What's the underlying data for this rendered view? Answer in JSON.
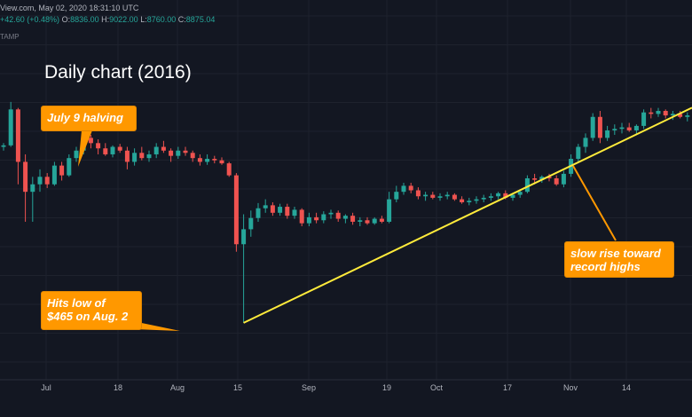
{
  "header": {
    "line1_text": "View.com, May 02, 2020 18:31:10 UTC",
    "change": "+42.60 (+0.48%)",
    "o_label": "O:",
    "o_value": "8836.00",
    "h_label": "H:",
    "h_value": "9022.00",
    "l_label": "L:",
    "l_value": "8760.00",
    "c_label": "C:",
    "c_value": "8875.04",
    "exchange": "TAMP"
  },
  "chart_data": {
    "type": "candlestick",
    "title": "Daily chart (2016)",
    "xlabel": "",
    "ylabel": "",
    "x_ticks": [
      "Jul",
      "18",
      "Aug",
      "15",
      "Sep",
      "19",
      "Oct",
      "17",
      "Nov",
      "14"
    ],
    "ylim": [
      440,
      780
    ],
    "grid": true,
    "up_color": "#26a69a",
    "down_color": "#ef5350",
    "series": [
      {
        "values": [
          [
            700,
            705,
            695,
            702
          ],
          [
            702,
            760,
            700,
            750
          ],
          [
            750,
            752,
            650,
            680
          ],
          [
            680,
            690,
            600,
            640
          ],
          [
            640,
            660,
            600,
            650
          ],
          [
            650,
            670,
            640,
            660
          ],
          [
            660,
            665,
            645,
            650
          ],
          [
            650,
            680,
            648,
            675
          ],
          [
            675,
            680,
            655,
            662
          ],
          [
            662,
            690,
            660,
            685
          ],
          [
            685,
            700,
            680,
            695
          ],
          [
            695,
            720,
            690,
            712
          ],
          [
            712,
            716,
            698,
            705
          ],
          [
            705,
            710,
            690,
            698
          ],
          [
            698,
            705,
            688,
            690
          ],
          [
            690,
            702,
            686,
            700
          ],
          [
            700,
            704,
            692,
            695
          ],
          [
            695,
            700,
            670,
            680
          ],
          [
            680,
            698,
            675,
            692
          ],
          [
            692,
            700,
            682,
            685
          ],
          [
            685,
            695,
            680,
            690
          ],
          [
            690,
            705,
            685,
            700
          ],
          [
            700,
            708,
            692,
            695
          ],
          [
            695,
            698,
            680,
            688
          ],
          [
            688,
            700,
            684,
            695
          ],
          [
            695,
            700,
            688,
            692
          ],
          [
            692,
            695,
            680,
            685
          ],
          [
            685,
            690,
            675,
            680
          ],
          [
            680,
            690,
            676,
            684
          ],
          [
            684,
            688,
            678,
            682
          ],
          [
            682,
            686,
            676,
            678
          ],
          [
            678,
            680,
            660,
            662
          ],
          [
            662,
            665,
            560,
            570
          ],
          [
            570,
            610,
            465,
            590
          ],
          [
            590,
            615,
            580,
            605
          ],
          [
            605,
            625,
            600,
            618
          ],
          [
            618,
            630,
            612,
            622
          ],
          [
            622,
            626,
            608,
            612
          ],
          [
            612,
            624,
            608,
            620
          ],
          [
            620,
            624,
            604,
            608
          ],
          [
            608,
            620,
            604,
            616
          ],
          [
            616,
            618,
            594,
            598
          ],
          [
            598,
            612,
            594,
            606
          ],
          [
            606,
            612,
            598,
            602
          ],
          [
            602,
            614,
            598,
            610
          ],
          [
            610,
            616,
            604,
            612
          ],
          [
            612,
            615,
            600,
            604
          ],
          [
            604,
            610,
            598,
            608
          ],
          [
            608,
            612,
            596,
            600
          ],
          [
            600,
            606,
            594,
            602
          ],
          [
            602,
            606,
            596,
            598
          ],
          [
            598,
            606,
            596,
            604
          ],
          [
            604,
            608,
            598,
            600
          ],
          [
            600,
            640,
            598,
            630
          ],
          [
            630,
            648,
            626,
            640
          ],
          [
            640,
            652,
            636,
            648
          ],
          [
            648,
            652,
            638,
            642
          ],
          [
            642,
            646,
            630,
            634
          ],
          [
            634,
            640,
            628,
            636
          ],
          [
            636,
            640,
            630,
            632
          ],
          [
            632,
            638,
            628,
            634
          ],
          [
            634,
            640,
            630,
            636
          ],
          [
            636,
            638,
            628,
            630
          ],
          [
            630,
            634,
            624,
            626
          ],
          [
            626,
            632,
            622,
            628
          ],
          [
            628,
            634,
            624,
            630
          ],
          [
            630,
            636,
            626,
            632
          ],
          [
            632,
            638,
            628,
            634
          ],
          [
            634,
            640,
            630,
            638
          ],
          [
            638,
            642,
            630,
            632
          ],
          [
            632,
            638,
            628,
            636
          ],
          [
            636,
            642,
            632,
            640
          ],
          [
            640,
            662,
            638,
            658
          ],
          [
            658,
            664,
            650,
            656
          ],
          [
            656,
            662,
            652,
            660
          ],
          [
            660,
            664,
            654,
            658
          ],
          [
            658,
            662,
            648,
            650
          ],
          [
            650,
            668,
            646,
            664
          ],
          [
            664,
            690,
            660,
            684
          ],
          [
            684,
            704,
            680,
            700
          ],
          [
            700,
            718,
            692,
            712
          ],
          [
            712,
            745,
            708,
            740
          ],
          [
            740,
            748,
            705,
            712
          ],
          [
            712,
            728,
            708,
            722
          ],
          [
            722,
            730,
            716,
            724
          ],
          [
            724,
            732,
            718,
            726
          ],
          [
            726,
            732,
            720,
            722
          ],
          [
            722,
            730,
            716,
            728
          ],
          [
            728,
            750,
            724,
            746
          ],
          [
            746,
            752,
            738,
            744
          ],
          [
            744,
            752,
            740,
            748
          ],
          [
            748,
            750,
            738,
            742
          ],
          [
            742,
            748,
            736,
            744
          ],
          [
            744,
            748,
            738,
            740
          ],
          [
            740,
            746,
            734,
            742
          ]
        ]
      }
    ],
    "trendline": {
      "from": [
        33,
        465
      ],
      "to": [
        92,
        740
      ],
      "color": "#ffeb3b"
    },
    "annotations": [
      {
        "text": "July 9 halving"
      },
      {
        "text_line1": "Hits low of",
        "text_line2": "$465 on Aug. 2"
      },
      {
        "text_line1": "slow rise toward",
        "text_line2": "record highs"
      }
    ]
  }
}
